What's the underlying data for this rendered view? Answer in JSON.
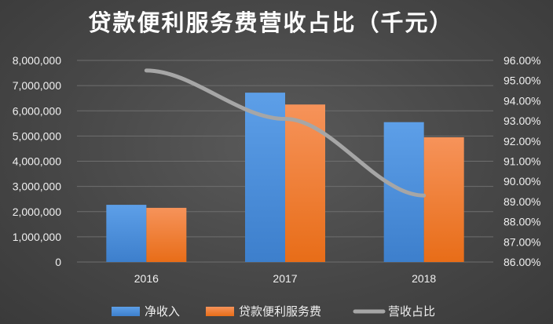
{
  "chart_data": {
    "type": "bar",
    "title": "贷款便利服务费营收占比（千元）",
    "categories": [
      "2016",
      "2017",
      "2018"
    ],
    "series": [
      {
        "name": "净收入",
        "type": "bar",
        "axis": "left",
        "color": "#4a8fdd",
        "values": [
          2270000,
          6720000,
          5550000
        ]
      },
      {
        "name": "贷款便利服务费",
        "type": "bar",
        "axis": "left",
        "color": "#f07f2e",
        "values": [
          2150000,
          6250000,
          4950000
        ]
      },
      {
        "name": "营收占比",
        "type": "line",
        "axis": "right",
        "color": "#a6a6a6",
        "values": [
          95.5,
          93.1,
          89.3
        ]
      }
    ],
    "y_left": {
      "min": 0,
      "max": 8000000,
      "ticks": [
        "0",
        "1,000,000",
        "2,000,000",
        "3,000,000",
        "4,000,000",
        "5,000,000",
        "6,000,000",
        "7,000,000",
        "8,000,000"
      ]
    },
    "y_right": {
      "min": 86,
      "max": 96,
      "ticks": [
        "86.00%",
        "87.00%",
        "88.00%",
        "89.00%",
        "90.00%",
        "91.00%",
        "92.00%",
        "93.00%",
        "94.00%",
        "95.00%",
        "96.00%"
      ]
    },
    "grid": true,
    "legend_position": "bottom"
  }
}
